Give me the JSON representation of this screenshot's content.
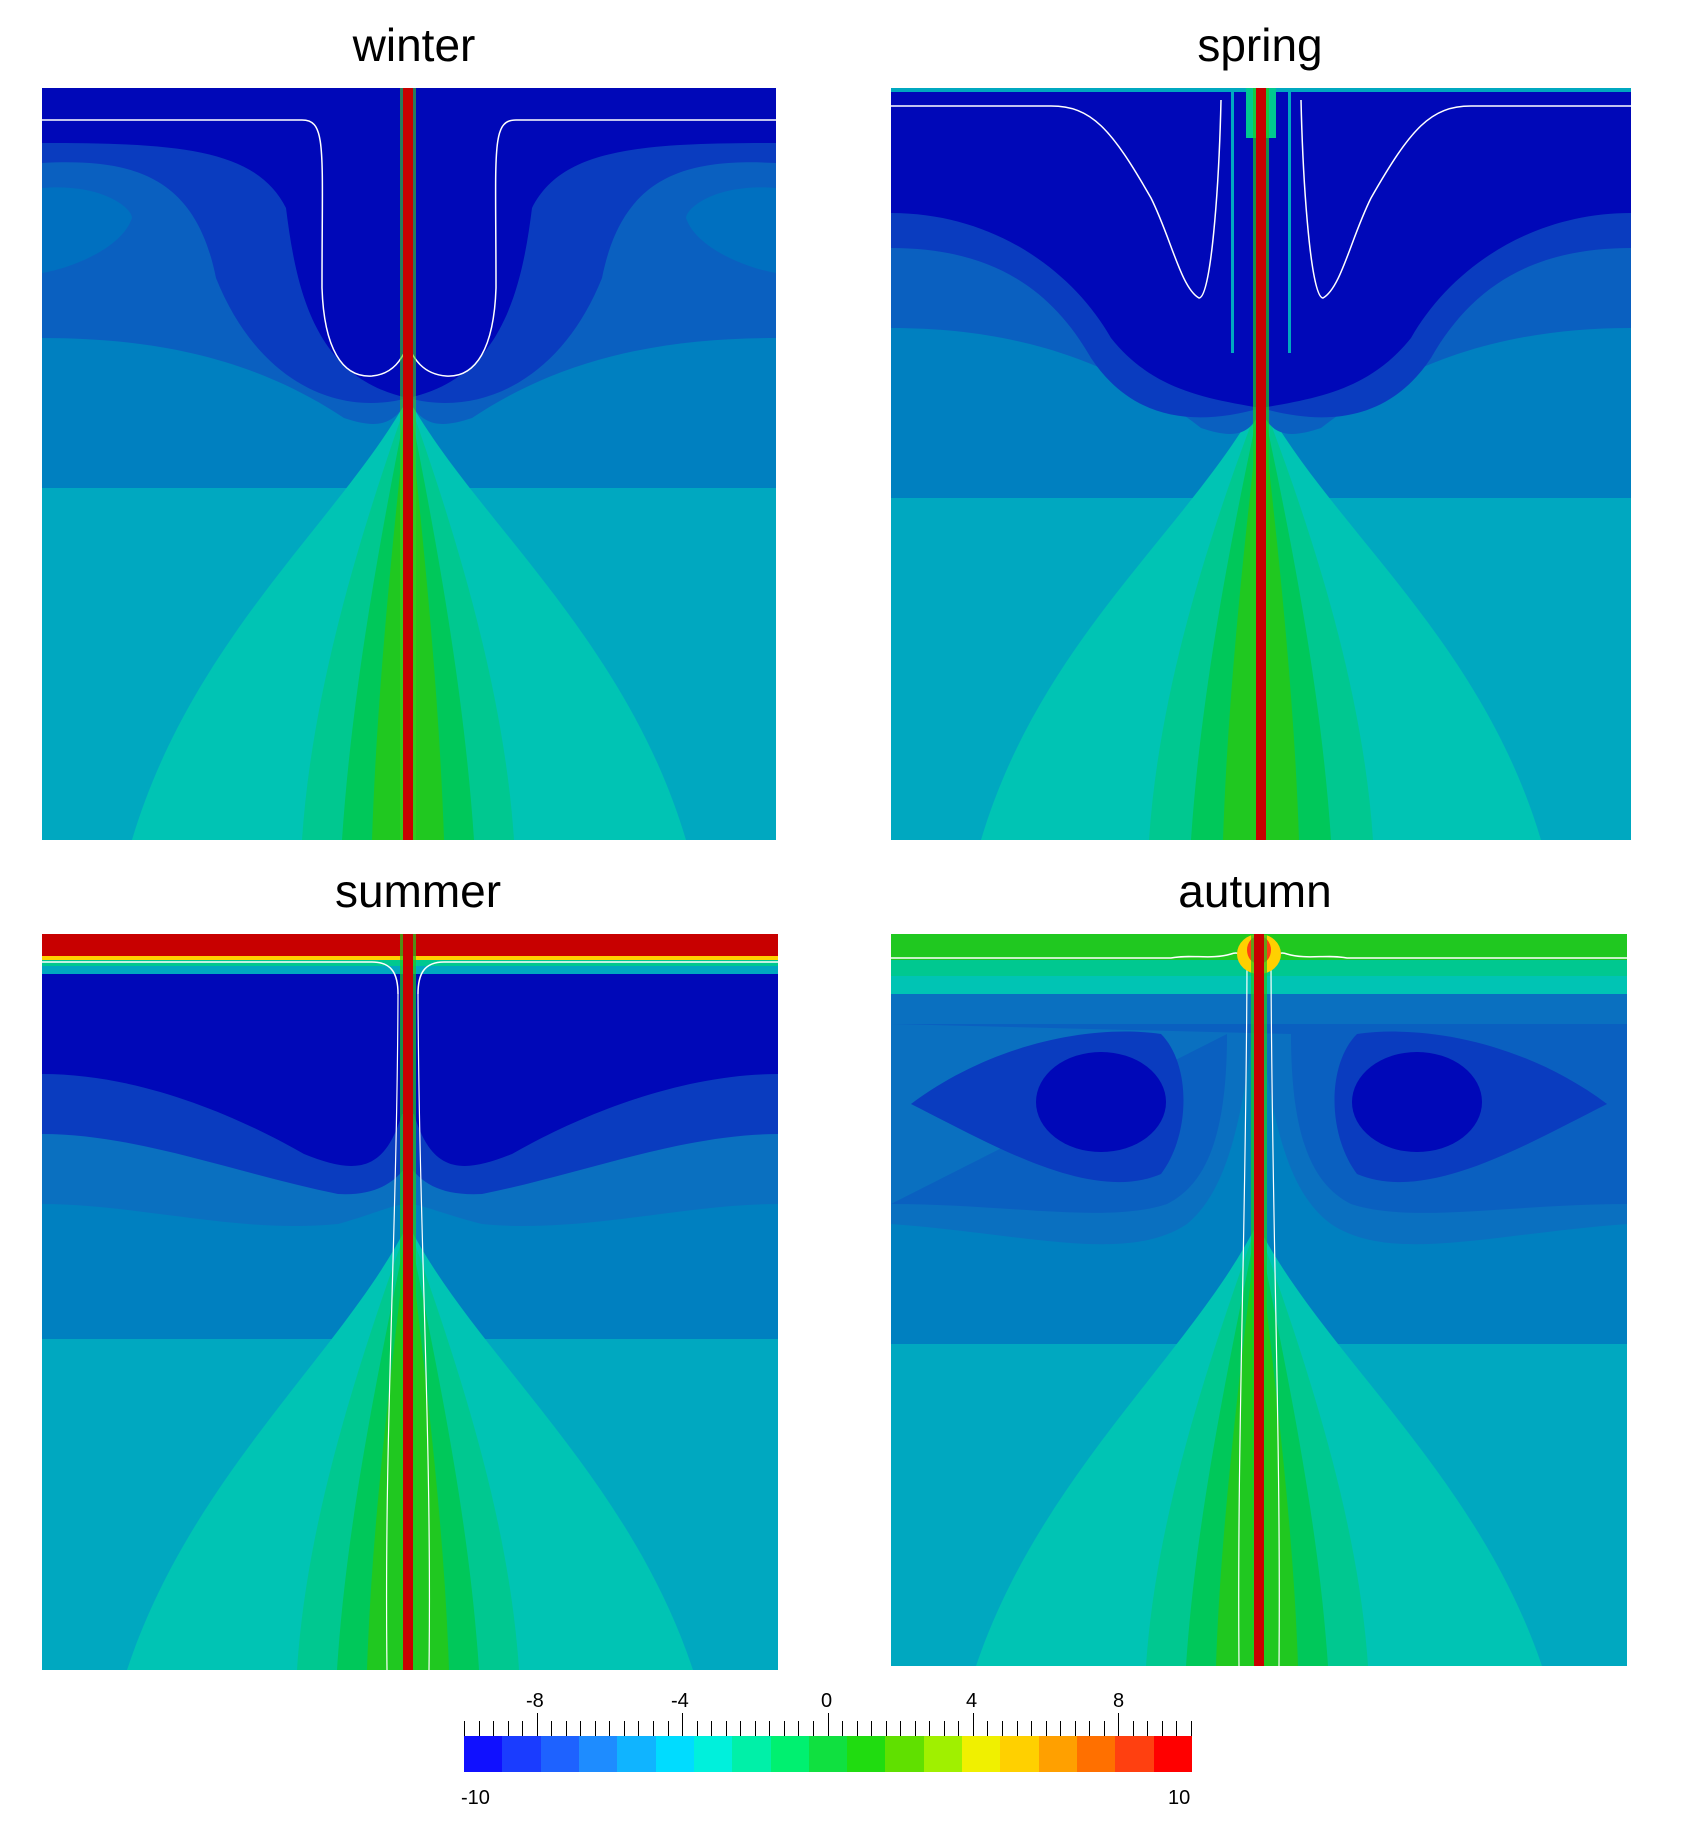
{
  "panels": [
    {
      "id": "winter",
      "title": "winter"
    },
    {
      "id": "spring",
      "title": "spring"
    },
    {
      "id": "summer",
      "title": "summer"
    },
    {
      "id": "autumn",
      "title": "autumn"
    }
  ],
  "colorbar": {
    "min_label": "-10",
    "max_label": "10",
    "tick_labels": [
      "-8",
      "-4",
      "0",
      "4",
      "8"
    ],
    "min": -10,
    "max": 10,
    "colors": [
      "#1010ff",
      "#1a3cff",
      "#1e62ff",
      "#1e8cff",
      "#10b4ff",
      "#00dcff",
      "#00f0dc",
      "#00f0a8",
      "#00f070",
      "#10e040",
      "#20dc10",
      "#60e000",
      "#a0f000",
      "#f0f000",
      "#ffd000",
      "#ffa000",
      "#ff7000",
      "#ff4010",
      "#ff0000"
    ]
  },
  "palette": {
    "deep_blue": "#0008b8",
    "blue": "#0a3cbf",
    "mid_blue": "#0a70c0",
    "steel_blue": "#0096c0",
    "teal": "#00a8c0",
    "aqua": "#00c4b4",
    "sea_green": "#00c890",
    "green": "#00c85a",
    "bright_green": "#20c820",
    "red": "#c80000"
  }
}
